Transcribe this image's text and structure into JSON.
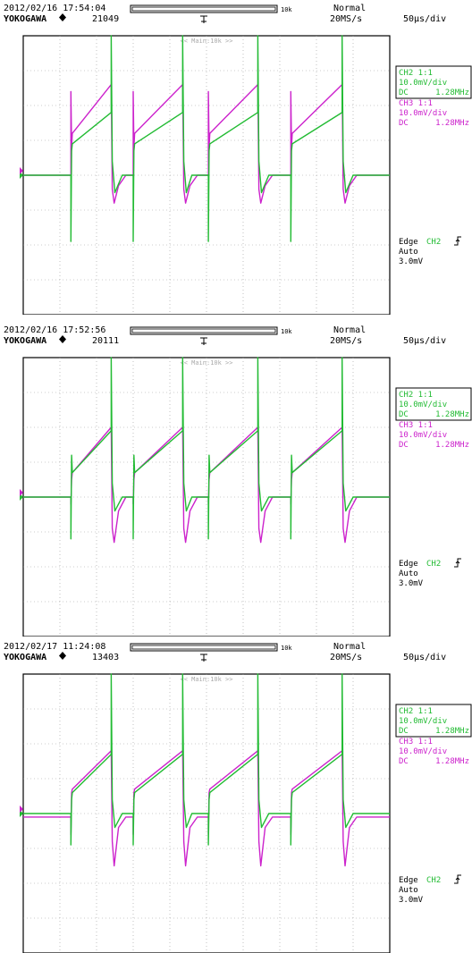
{
  "colors": {
    "ch2": "#22bb33",
    "ch3": "#cc22cc",
    "grid": "#9a9a9a",
    "text": "#000000",
    "frame": "#000000"
  },
  "panels": [
    {
      "datetime": "2012/02/16 17:54:04",
      "brand": "YOKOGAWA",
      "counter": "21049",
      "record_length": "10k",
      "trigger_mode": "Normal",
      "sample_rate": "20MS/s",
      "timebase": "50µs/div",
      "main_label": "<< Main:10k >>",
      "ch2": {
        "label": "CH2 1:1",
        "scale": "10.0mV/div",
        "coupling": "DC",
        "bw": "1.28MHz"
      },
      "ch3": {
        "label": "CH3 1:1",
        "scale": "10.0mV/div",
        "coupling": "DC",
        "bw": "1.28MHz"
      },
      "trigger": {
        "type": "Edge",
        "source": "CH2",
        "mode": "Auto",
        "level": "3.0mV"
      }
    },
    {
      "datetime": "2012/02/16 17:52:56",
      "brand": "YOKOGAWA",
      "counter": "20111",
      "record_length": "10k",
      "trigger_mode": "Normal",
      "sample_rate": "20MS/s",
      "timebase": "50µs/div",
      "main_label": "<< Main:10k >>",
      "ch2": {
        "label": "CH2 1:1",
        "scale": "10.0mV/div",
        "coupling": "DC",
        "bw": "1.28MHz"
      },
      "ch3": {
        "label": "CH3 1:1",
        "scale": "10.0mV/div",
        "coupling": "DC",
        "bw": "1.28MHz"
      },
      "trigger": {
        "type": "Edge",
        "source": "CH2",
        "mode": "Auto",
        "level": "3.0mV"
      }
    },
    {
      "datetime": "2012/02/17 11:24:08",
      "brand": "YOKOGAWA",
      "counter": "13403",
      "record_length": "10k",
      "trigger_mode": "Normal",
      "sample_rate": "20MS/s",
      "timebase": "50µs/div",
      "main_label": "<< Main:10k >>",
      "ch2": {
        "label": "CH2 1:1",
        "scale": "10.0mV/div",
        "coupling": "DC",
        "bw": "1.28MHz"
      },
      "ch3": {
        "label": "CH3 1:1",
        "scale": "10.0mV/div",
        "coupling": "DC",
        "bw": "1.28MHz"
      },
      "trigger": {
        "type": "Edge",
        "source": "CH2",
        "mode": "Auto",
        "level": "3.0mV"
      }
    }
  ],
  "chart_data": [
    {
      "type": "line",
      "x_unit": "div",
      "y_unit": "div",
      "xlim": [
        0,
        10
      ],
      "ylim": [
        -4,
        4
      ],
      "grid": true,
      "series": [
        {
          "name": "CH2",
          "x": [
            0,
            1.3,
            1.3,
            1.32,
            1.34,
            2.4,
            2.4,
            2.43,
            2.5,
            2.7,
            3.0,
            3.0,
            3.02,
            3.04,
            4.35,
            4.35,
            4.38,
            4.45,
            4.6,
            5.05,
            5.05,
            5.07,
            5.09,
            6.4,
            6.4,
            6.43,
            6.5,
            6.7,
            7.3,
            7.3,
            7.32,
            7.34,
            8.7,
            8.7,
            8.73,
            8.8,
            9.0,
            10
          ],
          "y": [
            0,
            0,
            -1.9,
            0.7,
            0.9,
            1.8,
            4.0,
            0.4,
            -0.5,
            0,
            0,
            -1.9,
            0.7,
            0.9,
            1.8,
            4.0,
            0.4,
            -0.5,
            0,
            0,
            -1.9,
            0.7,
            0.9,
            1.8,
            4.0,
            0.4,
            -0.5,
            0,
            0,
            -1.9,
            0.7,
            0.9,
            1.8,
            4.0,
            0.4,
            -0.5,
            0,
            0
          ]
        },
        {
          "name": "CH3",
          "x": [
            0,
            1.3,
            1.3,
            1.32,
            1.34,
            2.4,
            2.43,
            2.48,
            2.6,
            2.8,
            3.0,
            3.0,
            3.02,
            3.04,
            4.35,
            4.38,
            4.43,
            4.55,
            4.75,
            5.05,
            5.05,
            5.07,
            5.09,
            6.4,
            6.43,
            6.48,
            6.6,
            6.8,
            7.3,
            7.3,
            7.32,
            7.34,
            8.7,
            8.73,
            8.78,
            8.9,
            9.1,
            10
          ],
          "y": [
            0,
            0,
            2.4,
            0.8,
            1.2,
            2.6,
            -0.4,
            -0.8,
            -0.3,
            0,
            0,
            2.4,
            0.8,
            1.2,
            2.6,
            -0.4,
            -0.8,
            -0.3,
            0,
            0,
            2.4,
            0.8,
            1.2,
            2.6,
            -0.4,
            -0.8,
            -0.3,
            0,
            0,
            2.4,
            0.8,
            1.2,
            2.6,
            -0.4,
            -0.8,
            -0.3,
            0,
            0
          ]
        }
      ]
    },
    {
      "type": "line",
      "x_unit": "div",
      "y_unit": "div",
      "xlim": [
        0,
        10
      ],
      "ylim": [
        -4,
        4
      ],
      "grid": true,
      "series": [
        {
          "name": "CH2",
          "x": [
            0,
            1.3,
            1.3,
            1.32,
            1.34,
            2.4,
            2.4,
            2.43,
            2.5,
            2.7,
            3.0,
            3.0,
            3.02,
            3.04,
            4.35,
            4.35,
            4.38,
            4.45,
            4.6,
            5.05,
            5.05,
            5.07,
            5.09,
            6.4,
            6.4,
            6.43,
            6.5,
            6.7,
            7.3,
            7.3,
            7.32,
            7.34,
            8.7,
            8.7,
            8.73,
            8.8,
            9.0,
            10
          ],
          "y": [
            0,
            0,
            -1.2,
            1.2,
            0.7,
            1.9,
            5.4,
            0.4,
            -0.4,
            0,
            0,
            -1.2,
            1.2,
            0.7,
            1.9,
            5.4,
            0.4,
            -0.4,
            0,
            0,
            -1.2,
            1.2,
            0.7,
            1.9,
            5.4,
            0.4,
            -0.4,
            0,
            0,
            -1.2,
            1.2,
            0.7,
            1.9,
            5.4,
            0.4,
            -0.4,
            0,
            0
          ]
        },
        {
          "name": "CH3",
          "x": [
            0,
            1.3,
            1.3,
            1.32,
            1.34,
            2.4,
            2.43,
            2.48,
            2.6,
            2.8,
            3.0,
            3.0,
            3.02,
            3.04,
            4.35,
            4.38,
            4.43,
            4.55,
            4.75,
            5.05,
            5.05,
            5.07,
            5.09,
            6.4,
            6.43,
            6.48,
            6.6,
            6.8,
            7.3,
            7.3,
            7.32,
            7.34,
            8.7,
            8.73,
            8.78,
            8.9,
            9.1,
            10
          ],
          "y": [
            0,
            0,
            -0.2,
            0.5,
            0.7,
            2.0,
            -0.9,
            -1.3,
            -0.4,
            0,
            0,
            -0.2,
            0.5,
            0.7,
            2.0,
            -0.9,
            -1.3,
            -0.4,
            0,
            0,
            -0.2,
            0.5,
            0.7,
            2.0,
            -0.9,
            -1.3,
            -0.4,
            0,
            0,
            -0.2,
            0.5,
            0.7,
            2.0,
            -0.9,
            -1.3,
            -0.4,
            0,
            0
          ]
        }
      ]
    },
    {
      "type": "line",
      "x_unit": "div",
      "y_unit": "div",
      "xlim": [
        0,
        10
      ],
      "ylim": [
        -4,
        4
      ],
      "grid": true,
      "series": [
        {
          "name": "CH2",
          "x": [
            0,
            1.3,
            1.3,
            1.32,
            1.34,
            2.4,
            2.4,
            2.43,
            2.5,
            2.7,
            3.0,
            3.0,
            3.02,
            3.04,
            4.35,
            4.35,
            4.38,
            4.45,
            4.6,
            5.05,
            5.05,
            5.07,
            5.09,
            6.4,
            6.4,
            6.43,
            6.5,
            6.7,
            7.3,
            7.3,
            7.32,
            7.34,
            8.7,
            8.7,
            8.73,
            8.8,
            9.0,
            10
          ],
          "y": [
            0,
            0,
            -0.9,
            0.4,
            0.6,
            1.7,
            5.3,
            0.4,
            -0.4,
            0,
            0,
            -0.9,
            0.4,
            0.6,
            1.7,
            5.3,
            0.4,
            -0.4,
            0,
            0,
            -0.9,
            0.4,
            0.6,
            1.7,
            5.3,
            0.4,
            -0.4,
            0,
            0,
            -0.9,
            0.4,
            0.6,
            1.7,
            5.3,
            0.4,
            -0.4,
            0,
            0
          ]
        },
        {
          "name": "CH3",
          "x": [
            0,
            1.3,
            1.3,
            1.32,
            1.34,
            2.4,
            2.43,
            2.48,
            2.6,
            2.8,
            3.0,
            3.0,
            3.02,
            3.04,
            4.35,
            4.38,
            4.43,
            4.55,
            4.75,
            5.05,
            5.05,
            5.07,
            5.09,
            6.4,
            6.43,
            6.48,
            6.6,
            6.8,
            7.3,
            7.3,
            7.32,
            7.34,
            8.7,
            8.73,
            8.78,
            8.9,
            9.1,
            10
          ],
          "y": [
            -0.1,
            -0.1,
            -0.6,
            0.6,
            0.7,
            1.8,
            -0.8,
            -1.5,
            -0.4,
            -0.1,
            -0.1,
            -0.6,
            0.6,
            0.7,
            1.8,
            -0.8,
            -1.5,
            -0.4,
            -0.1,
            -0.1,
            -0.6,
            0.6,
            0.7,
            1.8,
            -0.8,
            -1.5,
            -0.4,
            -0.1,
            -0.1,
            -0.6,
            0.6,
            0.7,
            1.8,
            -0.8,
            -1.5,
            -0.4,
            -0.1,
            -0.1
          ]
        }
      ]
    }
  ]
}
